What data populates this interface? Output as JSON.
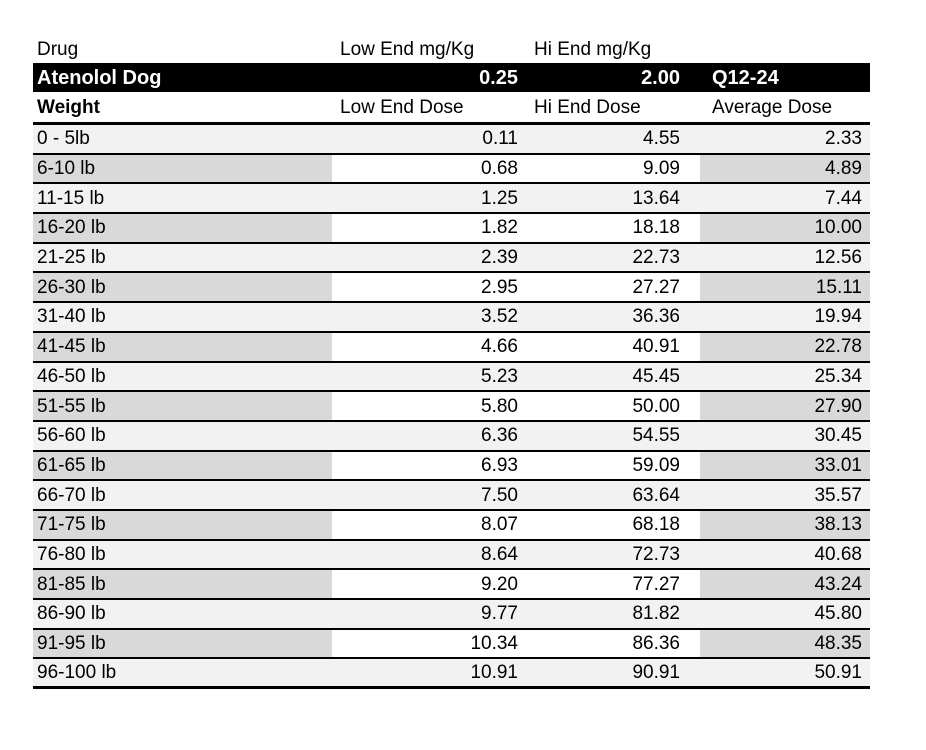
{
  "colors": {
    "bar_bg": "#000000",
    "bar_text": "#ffffff",
    "row_light": "#f2f2f2",
    "row_dark": "#d9d9d9"
  },
  "table": {
    "drug_header": {
      "drug_label": "Drug",
      "low_end_label": "Low End mg/Kg",
      "hi_end_label": "Hi End mg/Kg"
    },
    "drug_bar": {
      "name": "Atenolol Dog",
      "low_end_mg_kg": "0.25",
      "hi_end_mg_kg": "2.00",
      "frequency": "Q12-24"
    },
    "dose_header": {
      "weight_label": "Weight",
      "low_end_label": "Low End Dose",
      "hi_end_label": "Hi End Dose",
      "average_label": "Average Dose"
    },
    "rows": [
      {
        "weight": "0 - 5lb",
        "low": "0.11",
        "hi": "4.55",
        "avg": "2.33"
      },
      {
        "weight": "6-10 lb",
        "low": "0.68",
        "hi": "9.09",
        "avg": "4.89"
      },
      {
        "weight": "11-15 lb",
        "low": "1.25",
        "hi": "13.64",
        "avg": "7.44"
      },
      {
        "weight": "16-20 lb",
        "low": "1.82",
        "hi": "18.18",
        "avg": "10.00"
      },
      {
        "weight": "21-25 lb",
        "low": "2.39",
        "hi": "22.73",
        "avg": "12.56"
      },
      {
        "weight": "26-30 lb",
        "low": "2.95",
        "hi": "27.27",
        "avg": "15.11"
      },
      {
        "weight": "31-40 lb",
        "low": "3.52",
        "hi": "36.36",
        "avg": "19.94"
      },
      {
        "weight": "41-45 lb",
        "low": "4.66",
        "hi": "40.91",
        "avg": "22.78"
      },
      {
        "weight": "46-50 lb",
        "low": "5.23",
        "hi": "45.45",
        "avg": "25.34"
      },
      {
        "weight": "51-55 lb",
        "low": "5.80",
        "hi": "50.00",
        "avg": "27.90"
      },
      {
        "weight": "56-60 lb",
        "low": "6.36",
        "hi": "54.55",
        "avg": "30.45"
      },
      {
        "weight": "61-65 lb",
        "low": "6.93",
        "hi": "59.09",
        "avg": "33.01"
      },
      {
        "weight": "66-70 lb",
        "low": "7.50",
        "hi": "63.64",
        "avg": "35.57"
      },
      {
        "weight": "71-75 lb",
        "low": "8.07",
        "hi": "68.18",
        "avg": "38.13"
      },
      {
        "weight": "76-80 lb",
        "low": "8.64",
        "hi": "72.73",
        "avg": "40.68"
      },
      {
        "weight": "81-85 lb",
        "low": "9.20",
        "hi": "77.27",
        "avg": "43.24"
      },
      {
        "weight": "86-90 lb",
        "low": "9.77",
        "hi": "81.82",
        "avg": "45.80"
      },
      {
        "weight": "91-95 lb",
        "low": "10.34",
        "hi": "86.36",
        "avg": "48.35"
      },
      {
        "weight": "96-100 lb",
        "low": "10.91",
        "hi": "90.91",
        "avg": "50.91"
      }
    ]
  }
}
